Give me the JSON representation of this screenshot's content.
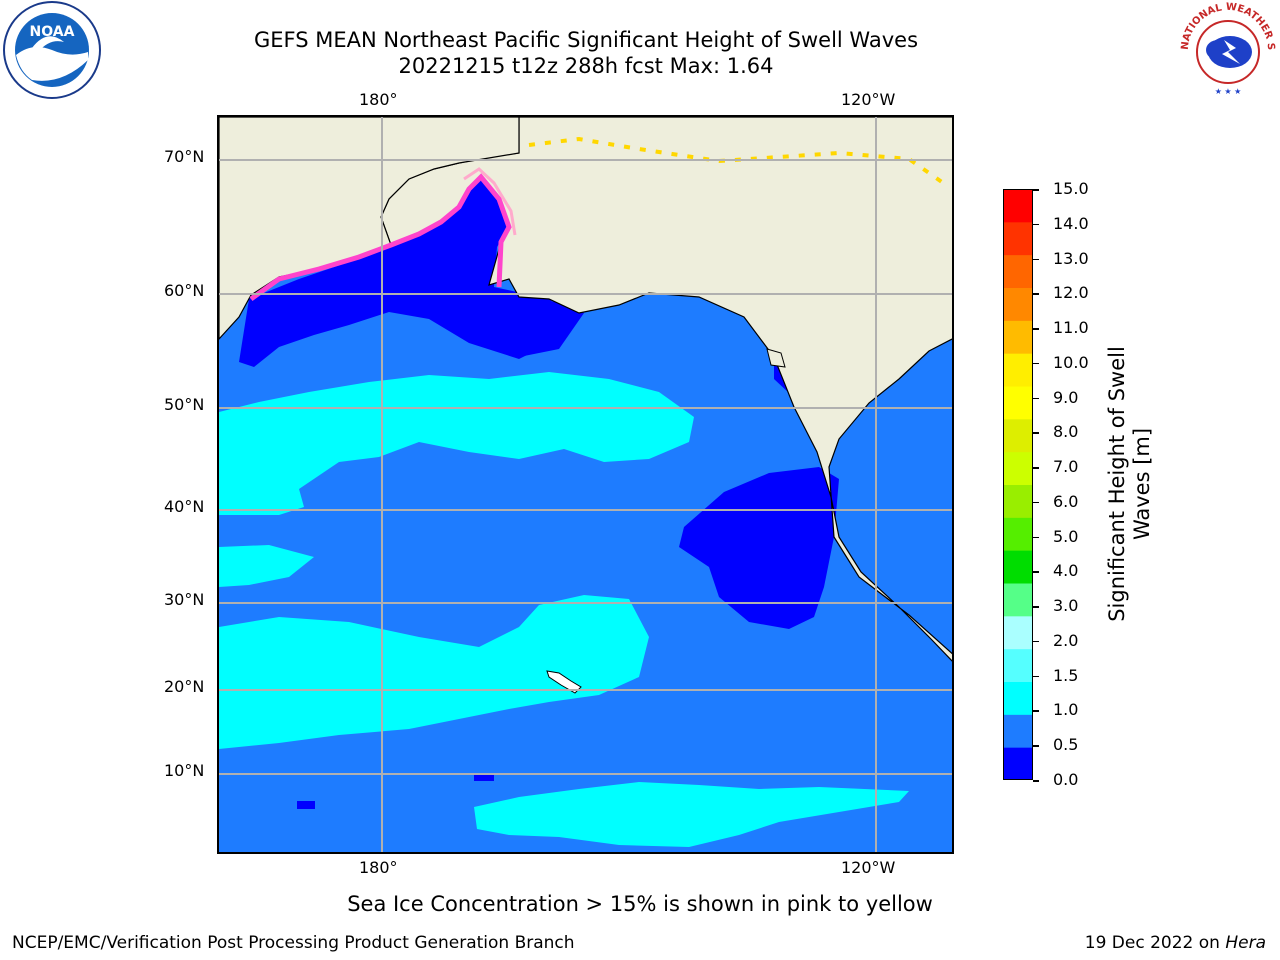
{
  "title": {
    "line1": "GEFS MEAN Northeast Pacific Significant Height of Swell Waves",
    "line2": "20221215 t12z 288h fcst   Max: 1.64"
  },
  "logos": {
    "left": "NOAA",
    "right_text": "NATIONAL WEATHER SERVICE"
  },
  "map": {
    "lon_labels_top": [
      "180°",
      "120°W"
    ],
    "lon_labels_bottom": [
      "180°",
      "120°W"
    ],
    "lat_labels": [
      "70°N",
      "60°N",
      "50°N",
      "40°N",
      "30°N",
      "20°N",
      "10°N"
    ],
    "colors": {
      "land": "#eeeedc",
      "ocean_base": "#1e7cff",
      "low_swell": "#0000ff",
      "mid_swell": "#00ffff",
      "ice_edge": "#ff44cc",
      "ice_pink": "#ffaacc",
      "ice_yellow": "#ffd700",
      "grid": "#b0b0b0"
    }
  },
  "colorbar": {
    "ticks": [
      "15.0",
      "14.0",
      "13.0",
      "12.0",
      "11.0",
      "10.0",
      "9.0",
      "8.0",
      "7.0",
      "6.0",
      "5.0",
      "4.0",
      "3.0",
      "2.0",
      "1.5",
      "1.0",
      "0.5",
      "0.0"
    ],
    "colors_bottom_to_top": [
      "#0000ff",
      "#1e7cff",
      "#00ffff",
      "#55ffff",
      "#aaffff",
      "#55ff88",
      "#00dd00",
      "#55ee00",
      "#99ee00",
      "#ccff00",
      "#ddee00",
      "#ffff00",
      "#ffee00",
      "#ffbb00",
      "#ff8800",
      "#ff6600",
      "#ff3300",
      "#ff0000"
    ],
    "label": "Significant Height of Swell Waves [m]"
  },
  "footnote": "Sea Ice Concentration > 15% is shown in pink to yellow",
  "credit": "NCEP/EMC/Verification Post Processing Product Generation Branch",
  "date": "19 Dec 2022 on",
  "system": "Hera"
}
